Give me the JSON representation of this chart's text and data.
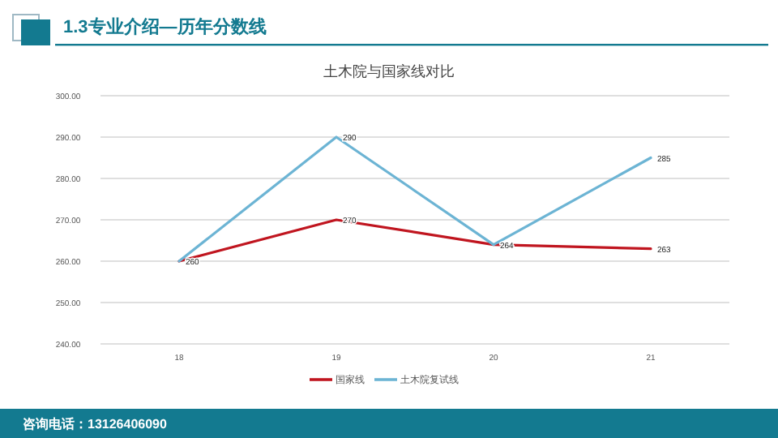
{
  "chart_data": {
    "type": "line",
    "title": "1.3专业介绍—历年分数线",
    "subtitle": "土木院与国家线对比",
    "categories": [
      "18",
      "19",
      "20",
      "21"
    ],
    "series": [
      {
        "name": "国家线",
        "color": "#c0151f",
        "values": [
          260,
          270,
          264,
          263
        ],
        "value_labels": [
          "260",
          "270",
          "264",
          "263"
        ]
      },
      {
        "name": "土木院复试线",
        "color": "#6cb4d4",
        "values": [
          260,
          290,
          264,
          285
        ],
        "value_labels": [
          null,
          "290",
          null,
          "285"
        ]
      }
    ],
    "ylim": [
      240,
      300
    ],
    "yticks": [
      {
        "value": 240,
        "label": "240.00"
      },
      {
        "value": 250,
        "label": "250.00"
      },
      {
        "value": 260,
        "label": "260.00"
      },
      {
        "value": 270,
        "label": "270.00"
      },
      {
        "value": 280,
        "label": "280.00"
      },
      {
        "value": 290,
        "label": "290.00"
      },
      {
        "value": 300,
        "label": "300.00"
      }
    ],
    "grid": "y",
    "legend": "bottom",
    "annotations": [
      "咨询电话：13126406090"
    ]
  }
}
